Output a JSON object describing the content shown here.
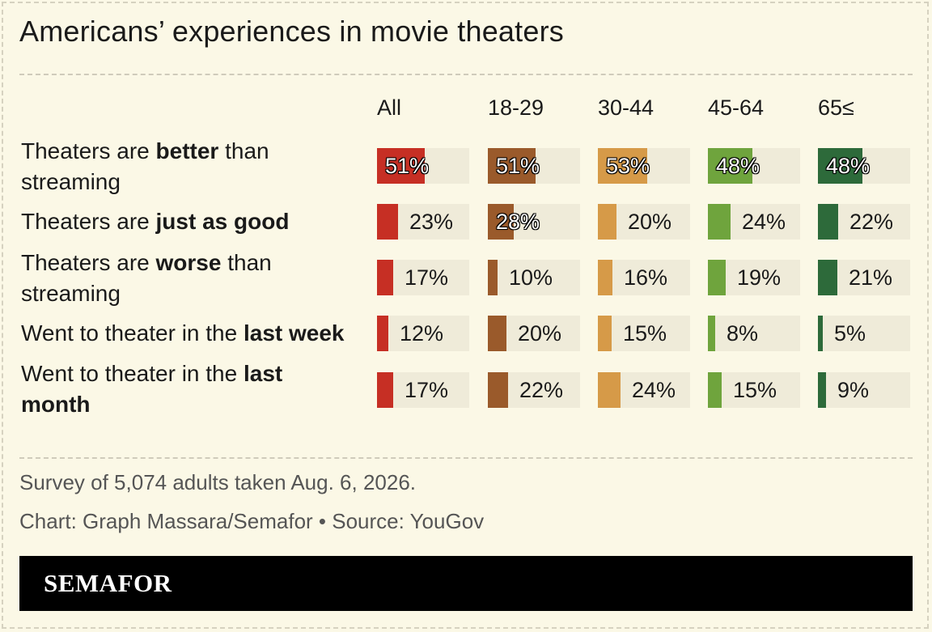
{
  "title": "Americans’ experiences in movie theaters",
  "notes": {
    "survey": "Survey of 5,074 adults taken Aug. 6, 2026.",
    "credit": "Chart: Graph Massara/Semafor • Source: YouGov"
  },
  "brand": "SEMAFOR",
  "colors": {
    "background": "#fbf8e6",
    "cell_track": "#efebd9",
    "All": "#c62f24",
    "18-29": "#9a5a2b",
    "30-44": "#d69a48",
    "45-64": "#6fa43d",
    "65≤": "#2d6a3a"
  },
  "rows": [
    {
      "prefix": "Theaters are ",
      "bold": "better",
      "suffix": " than streaming"
    },
    {
      "prefix": "Theaters are ",
      "bold": "just as good",
      "suffix": ""
    },
    {
      "prefix": "Theaters are ",
      "bold": "worse",
      "suffix": " than streaming"
    },
    {
      "prefix": "Went to theater in the ",
      "bold": "last week",
      "suffix": ""
    },
    {
      "prefix": "Went to theater in the ",
      "bold": "last month",
      "suffix": ""
    }
  ],
  "chart_data": {
    "type": "table",
    "columns": [
      "All",
      "18-29",
      "30-44",
      "45-64",
      "65≤"
    ],
    "categories": [
      "Theaters are better than streaming",
      "Theaters are just as good",
      "Theaters are worse than streaming",
      "Went to theater in the last week",
      "Went to theater in the last month"
    ],
    "series": [
      {
        "name": "All",
        "values": [
          51,
          23,
          17,
          12,
          17
        ]
      },
      {
        "name": "18-29",
        "values": [
          51,
          28,
          10,
          20,
          22
        ]
      },
      {
        "name": "30-44",
        "values": [
          53,
          20,
          16,
          15,
          24
        ]
      },
      {
        "name": "45-64",
        "values": [
          48,
          24,
          19,
          8,
          15
        ]
      },
      {
        "name": "65≤",
        "values": [
          48,
          22,
          21,
          5,
          9
        ]
      }
    ],
    "unit": "%"
  }
}
